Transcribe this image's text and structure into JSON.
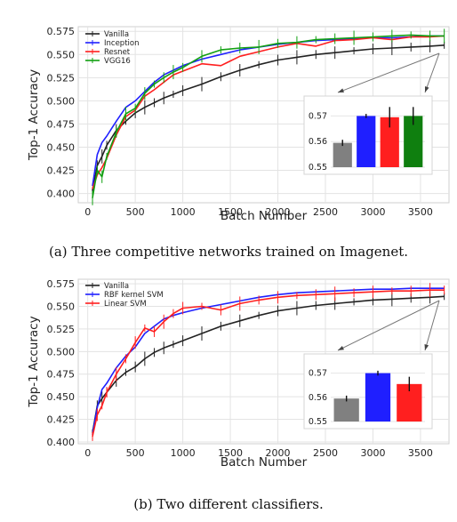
{
  "captions": {
    "a": "(a) Three competitive networks trained on Imagenet.",
    "b": "(b) Two different classifiers."
  },
  "chart_data": [
    {
      "type": "line",
      "xlabel": "Batch Number",
      "ylabel": "Top-1 Accuracy",
      "xlim": [
        -100,
        3800
      ],
      "ylim": [
        0.39,
        0.58
      ],
      "xticks": [
        0,
        500,
        1000,
        1500,
        2000,
        2500,
        3000,
        3500
      ],
      "yticks": [
        0.4,
        0.425,
        0.45,
        0.475,
        0.5,
        0.525,
        0.55,
        0.575
      ],
      "grid": true,
      "legend_position": "top-left",
      "x": [
        50,
        100,
        150,
        200,
        300,
        400,
        500,
        600,
        700,
        800,
        900,
        1000,
        1200,
        1400,
        1600,
        1800,
        2000,
        2200,
        2400,
        2600,
        2800,
        3000,
        3200,
        3400,
        3600,
        3750
      ],
      "series": [
        {
          "name": "Vanilla",
          "color": "#222222",
          "errorbars": true,
          "values": [
            0.403,
            0.43,
            0.44,
            0.452,
            0.468,
            0.478,
            0.487,
            0.493,
            0.498,
            0.503,
            0.507,
            0.511,
            0.518,
            0.526,
            0.533,
            0.539,
            0.544,
            0.547,
            0.55,
            0.552,
            0.554,
            0.556,
            0.557,
            0.558,
            0.559,
            0.56
          ]
        },
        {
          "name": "Inception",
          "color": "#1f1fff",
          "errorbars": false,
          "values": [
            0.408,
            0.442,
            0.455,
            0.462,
            0.478,
            0.493,
            0.5,
            0.51,
            0.52,
            0.528,
            0.533,
            0.538,
            0.545,
            0.55,
            0.555,
            0.558,
            0.561,
            0.563,
            0.565,
            0.566,
            0.567,
            0.568,
            0.568,
            0.569,
            0.57,
            0.57
          ]
        },
        {
          "name": "Resnet",
          "color": "#ff1f1f",
          "errorbars": false,
          "values": [
            0.405,
            0.42,
            0.428,
            0.438,
            0.463,
            0.483,
            0.49,
            0.505,
            0.512,
            0.52,
            0.528,
            0.532,
            0.54,
            0.538,
            0.548,
            0.553,
            0.558,
            0.562,
            0.559,
            0.565,
            0.566,
            0.568,
            0.566,
            0.569,
            0.569,
            0.57
          ]
        },
        {
          "name": "VGG16",
          "color": "#12a012",
          "errorbars": true,
          "values": [
            0.395,
            0.425,
            0.418,
            0.44,
            0.466,
            0.486,
            0.492,
            0.508,
            0.518,
            0.525,
            0.531,
            0.536,
            0.548,
            0.555,
            0.557,
            0.558,
            0.562,
            0.563,
            0.566,
            0.567,
            0.568,
            0.569,
            0.57,
            0.571,
            0.57,
            0.57
          ]
        }
      ],
      "inset": {
        "type": "bar",
        "ylim": [
          0.55,
          0.575
        ],
        "yticks": [
          0.55,
          0.56,
          0.57
        ],
        "values": [
          0.5595,
          0.57,
          0.5695,
          0.57
        ],
        "errors": [
          0.0012,
          0.0008,
          0.004,
          0.0035
        ],
        "colors": [
          "#808080",
          "#1f1fff",
          "#ff1f1f",
          "#0f7f0f"
        ]
      }
    },
    {
      "type": "line",
      "xlabel": "Batch Number",
      "ylabel": "Top-1 Accuracy",
      "xlim": [
        -100,
        3800
      ],
      "ylim": [
        0.398,
        0.58
      ],
      "xticks": [
        0,
        500,
        1000,
        1500,
        2000,
        2500,
        3000,
        3500
      ],
      "yticks": [
        0.4,
        0.425,
        0.45,
        0.475,
        0.5,
        0.525,
        0.55,
        0.575
      ],
      "grid": true,
      "legend_position": "top-left",
      "x": [
        50,
        100,
        150,
        200,
        300,
        400,
        500,
        600,
        700,
        800,
        900,
        1000,
        1200,
        1400,
        1600,
        1800,
        2000,
        2200,
        2400,
        2600,
        2800,
        3000,
        3200,
        3400,
        3600,
        3750
      ],
      "series": [
        {
          "name": "Vanilla",
          "color": "#222222",
          "errorbars": true,
          "values": [
            0.41,
            0.44,
            0.448,
            0.455,
            0.468,
            0.477,
            0.483,
            0.492,
            0.499,
            0.504,
            0.508,
            0.512,
            0.52,
            0.528,
            0.534,
            0.54,
            0.545,
            0.548,
            0.551,
            0.553,
            0.555,
            0.557,
            0.558,
            0.559,
            0.56,
            0.561
          ]
        },
        {
          "name": "RBF kernel SVM",
          "color": "#1f1fff",
          "errorbars": false,
          "values": [
            0.408,
            0.438,
            0.458,
            0.465,
            0.482,
            0.495,
            0.505,
            0.52,
            0.528,
            0.536,
            0.54,
            0.543,
            0.548,
            0.552,
            0.556,
            0.56,
            0.563,
            0.565,
            0.566,
            0.567,
            0.568,
            0.569,
            0.569,
            0.57,
            0.57,
            0.57
          ]
        },
        {
          "name": "Linear SVM",
          "color": "#ff1f1f",
          "errorbars": true,
          "values": [
            0.406,
            0.43,
            0.44,
            0.455,
            0.475,
            0.492,
            0.51,
            0.526,
            0.522,
            0.533,
            0.542,
            0.548,
            0.55,
            0.546,
            0.553,
            0.557,
            0.56,
            0.562,
            0.563,
            0.564,
            0.565,
            0.566,
            0.567,
            0.567,
            0.568,
            0.568
          ]
        }
      ],
      "inset": {
        "type": "bar",
        "ylim": [
          0.55,
          0.575
        ],
        "yticks": [
          0.55,
          0.56,
          0.57
        ],
        "values": [
          0.5595,
          0.57,
          0.5655
        ],
        "errors": [
          0.0012,
          0.001,
          0.003
        ],
        "colors": [
          "#808080",
          "#1f1fff",
          "#ff1f1f"
        ]
      }
    }
  ]
}
